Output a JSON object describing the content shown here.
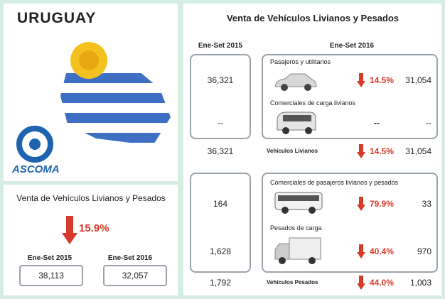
{
  "left": {
    "country": "URUGUAY",
    "logo": "ASCOMA",
    "summary": {
      "title": "Venta de Vehículos Livianos y Pesados",
      "change": "15.9%",
      "periods": [
        {
          "label": "Ene-Set 2015",
          "value": "38,113"
        },
        {
          "label": "Ene-Set 2016",
          "value": "32,057"
        }
      ]
    }
  },
  "right": {
    "title": "Venta de Vehículos Livianos y Pesados",
    "headers": [
      "Ene-Set 2015",
      "Ene-Set 2016"
    ],
    "groups": [
      {
        "rows": [
          {
            "name": "Pasajeros y utilitarios",
            "prev": "36,321",
            "change": "14.5%",
            "curr": "31,054"
          },
          {
            "name": "Comerciales de carga livianos",
            "prev": "--",
            "change": "--",
            "curr": "--"
          }
        ],
        "total": {
          "name": "Vehículos Livianos",
          "prev": "36,321",
          "change": "14.5%",
          "curr": "31,054"
        }
      },
      {
        "rows": [
          {
            "name": "Comerciales de pasajeros livianos y pesados",
            "prev": "164",
            "change": "79.9%",
            "curr": "33"
          },
          {
            "name": "Pesados de carga",
            "prev": "1,628",
            "change": "40.4%",
            "curr": "970"
          }
        ],
        "total": {
          "name": "Vehículos Pesados",
          "prev": "1,792",
          "change": "44.0%",
          "curr": "1,003"
        }
      }
    ]
  }
}
